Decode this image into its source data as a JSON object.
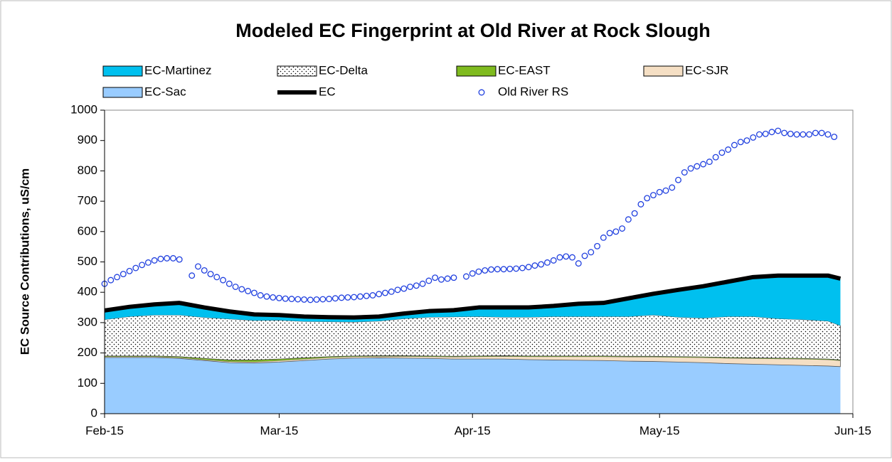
{
  "chart_data": {
    "type": "stacked-area",
    "title": "Modeled EC Fingerprint at Old River at Rock Slough",
    "y_label": "EC Source Contributions, uS/cm",
    "xlim": [
      0,
      120
    ],
    "xticks": [
      {
        "value": 0,
        "label": "Feb-15"
      },
      {
        "value": 28,
        "label": "Mar-15"
      },
      {
        "value": 59,
        "label": "Apr-15"
      },
      {
        "value": 89,
        "label": "May-15"
      },
      {
        "value": 120,
        "label": "Jun-15"
      }
    ],
    "ylim": [
      0,
      1000
    ],
    "yticks": [
      0,
      100,
      200,
      300,
      400,
      500,
      600,
      700,
      800,
      900,
      1000
    ],
    "x": [
      0,
      4,
      8,
      12,
      16,
      20,
      24,
      28,
      32,
      36,
      40,
      44,
      48,
      52,
      56,
      60,
      64,
      68,
      72,
      76,
      80,
      84,
      88,
      92,
      96,
      100,
      104,
      108,
      112,
      116,
      118
    ],
    "series": [
      {
        "name": "EC-Martinez",
        "kind": "area",
        "color": "#00c0ef",
        "values": [
          30,
          32,
          35,
          40,
          33,
          25,
          20,
          17,
          16,
          15,
          15,
          15,
          17,
          20,
          22,
          30,
          32,
          32,
          35,
          42,
          45,
          60,
          70,
          90,
          105,
          115,
          130,
          142,
          145,
          150,
          155
        ]
      },
      {
        "name": "EC-Delta",
        "kind": "area",
        "color": "#ffffff",
        "pattern": "dots",
        "values": [
          120,
          130,
          135,
          137,
          135,
          135,
          130,
          128,
          120,
          115,
          112,
          114,
          122,
          128,
          130,
          130,
          127,
          128,
          130,
          130,
          130,
          131,
          136,
          130,
          128,
          135,
          136,
          130,
          128,
          125,
          113
        ]
      },
      {
        "name": "EC-EAST",
        "kind": "area",
        "color": "#7fbb1f",
        "values": [
          2,
          2,
          2,
          3,
          4,
          5,
          6,
          5,
          4,
          3,
          2,
          2,
          2,
          2,
          2,
          2,
          2,
          2,
          2,
          2,
          2,
          2,
          2,
          2,
          2,
          2,
          2,
          2,
          2,
          2,
          2
        ]
      },
      {
        "name": "EC-SJR",
        "kind": "area",
        "color": "#f5dfc4",
        "values": [
          3,
          3,
          3,
          3,
          3,
          4,
          4,
          5,
          5,
          5,
          5,
          5,
          6,
          6,
          7,
          8,
          9,
          10,
          11,
          12,
          13,
          14,
          15,
          16,
          17,
          18,
          19,
          20,
          21,
          21,
          20
        ]
      },
      {
        "name": "EC-Sac",
        "kind": "area",
        "color": "#99ccff",
        "values": [
          185,
          185,
          185,
          182,
          175,
          168,
          167,
          170,
          175,
          180,
          183,
          184,
          183,
          182,
          180,
          180,
          180,
          178,
          177,
          176,
          175,
          173,
          172,
          170,
          168,
          165,
          163,
          161,
          159,
          157,
          155
        ]
      },
      {
        "name": "EC",
        "kind": "line",
        "color": "#000000",
        "values": [
          340,
          352,
          360,
          365,
          350,
          337,
          327,
          325,
          320,
          318,
          317,
          320,
          330,
          338,
          341,
          350,
          350,
          350,
          355,
          362,
          365,
          380,
          395,
          408,
          420,
          435,
          450,
          455,
          455,
          455,
          445
        ]
      },
      {
        "name": "Old River RS",
        "kind": "scatter",
        "color": "#1f3fdf",
        "x": [
          0,
          1,
          2,
          3,
          4,
          5,
          6,
          7,
          8,
          9,
          10,
          11,
          12,
          14,
          15,
          16,
          17,
          18,
          19,
          20,
          21,
          22,
          23,
          24,
          25,
          26,
          27,
          28,
          29,
          30,
          31,
          32,
          33,
          34,
          35,
          36,
          37,
          38,
          39,
          40,
          41,
          42,
          43,
          44,
          45,
          46,
          47,
          48,
          49,
          50,
          51,
          52,
          53,
          54,
          55,
          56,
          58,
          59,
          60,
          61,
          62,
          63,
          64,
          65,
          66,
          67,
          68,
          69,
          70,
          71,
          72,
          73,
          74,
          75,
          76,
          77,
          78,
          79,
          80,
          81,
          82,
          83,
          84,
          85,
          86,
          87,
          88,
          89,
          90,
          91,
          92,
          93,
          94,
          95,
          96,
          97,
          98,
          99,
          100,
          101,
          102,
          103,
          104,
          105,
          106,
          107,
          108,
          109,
          110,
          111,
          112,
          113,
          114,
          115,
          116,
          117
        ],
        "values": [
          428,
          440,
          450,
          460,
          470,
          480,
          490,
          498,
          505,
          510,
          512,
          512,
          508,
          455,
          485,
          472,
          460,
          450,
          440,
          428,
          418,
          410,
          404,
          398,
          390,
          386,
          383,
          381,
          379,
          378,
          377,
          376,
          375,
          376,
          377,
          378,
          380,
          382,
          383,
          384,
          386,
          388,
          390,
          394,
          398,
          402,
          408,
          412,
          418,
          422,
          428,
          438,
          448,
          442,
          445,
          448,
          452,
          462,
          468,
          472,
          475,
          476,
          476,
          477,
          478,
          480,
          483,
          488,
          492,
          498,
          505,
          515,
          518,
          515,
          495,
          520,
          532,
          552,
          580,
          595,
          600,
          610,
          640,
          660,
          690,
          710,
          720,
          730,
          735,
          745,
          770,
          795,
          808,
          815,
          822,
          830,
          845,
          860,
          870,
          885,
          895,
          900,
          910,
          920,
          922,
          928,
          932,
          925,
          922,
          920,
          920,
          920,
          925,
          925,
          920,
          912
        ]
      }
    ]
  }
}
